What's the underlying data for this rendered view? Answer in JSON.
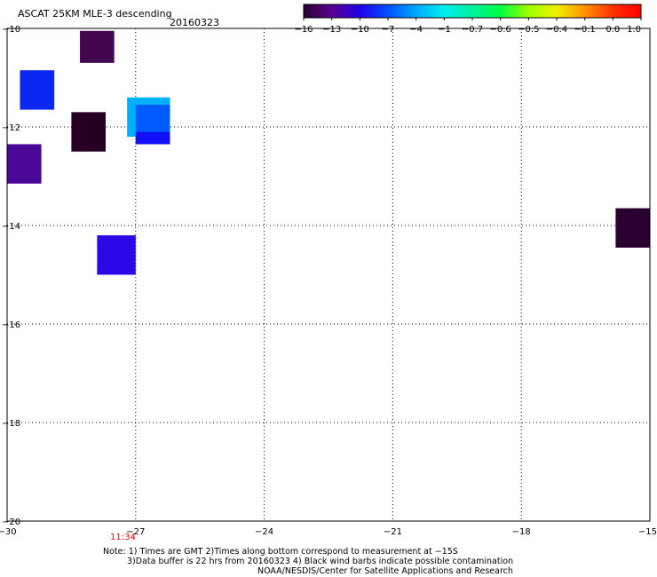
{
  "chart_data": {
    "type": "heatmap",
    "title": "ASCAT 25KM MLE-3 descending",
    "date": "20160323",
    "xlim": [
      -30,
      -15
    ],
    "ylim": [
      -20,
      -10
    ],
    "x_ticks": [
      -30,
      -27,
      -24,
      -21,
      -18,
      -15
    ],
    "x_tick_labels": [
      "−30",
      "−27",
      "−24",
      "−21",
      "−18",
      "−15"
    ],
    "y_ticks": [
      -10,
      -12,
      -14,
      -16,
      -18,
      -20
    ],
    "y_tick_labels": [
      "−10",
      "−12",
      "−14",
      "−16",
      "−18",
      "−20"
    ],
    "grid": true,
    "colorbar": {
      "tick_labels": [
        "−16",
        "−13",
        "−10",
        "−7",
        "−4",
        "−1",
        "−0.7",
        "−0.6",
        "−0.5",
        "−0.4",
        "−0.1",
        "0.0",
        "1.0"
      ],
      "colors": [
        "#2a0030",
        "#5a0090",
        "#2000e8",
        "#0050ff",
        "#00a8ff",
        "#00f0f0",
        "#00f0a0",
        "#00ff40",
        "#a0ff00",
        "#f0f000",
        "#ff9000",
        "#ff3000",
        "#ff0000"
      ]
    },
    "cells": [
      {
        "x0": -28.3,
        "x1": -27.5,
        "y0": -10.05,
        "y1": -10.7,
        "value": -14,
        "color": "#44064f"
      },
      {
        "x0": -29.7,
        "x1": -28.9,
        "y0": -10.85,
        "y1": -11.65,
        "value": -8,
        "color": "#0a28f0"
      },
      {
        "x0": -27.2,
        "x1": -26.2,
        "y0": -11.4,
        "y1": -12.2,
        "value": -3,
        "color": "#00b0ff"
      },
      {
        "x0": -27.0,
        "x1": -26.2,
        "y0": -11.55,
        "y1": -12.35,
        "value": -7,
        "color": "#005cff"
      },
      {
        "x0": -27.0,
        "x1": -26.2,
        "y0": -12.1,
        "y1": -12.35,
        "value": -9,
        "color": "#1010f8"
      },
      {
        "x0": -28.5,
        "x1": -27.7,
        "y0": -11.7,
        "y1": -12.5,
        "value": -16,
        "color": "#270026"
      },
      {
        "x0": -30.0,
        "x1": -29.2,
        "y0": -12.35,
        "y1": -13.15,
        "value": -12,
        "color": "#4a0896"
      },
      {
        "x0": -15.8,
        "x1": -15.0,
        "y0": -13.65,
        "y1": -14.45,
        "value": -16,
        "color": "#2a0030"
      },
      {
        "x0": -27.9,
        "x1": -27.0,
        "y0": -14.2,
        "y1": -15.0,
        "value": -9,
        "color": "#2a08e8"
      }
    ],
    "time_label": "11:34",
    "notes": [
      "Note: 1) Times are GMT 2)Times along bottom correspond to measurement at −15S",
      "3)Data buffer is 22 hrs from 20160323 4) Black wind barbs indicate possible contamination",
      "NOAA/NESDIS/Center for Satellite Applications and Research"
    ]
  }
}
